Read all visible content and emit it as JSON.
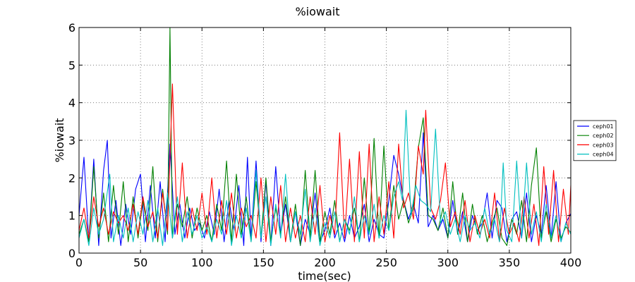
{
  "chart_data": {
    "type": "line",
    "title": "%iowait",
    "xlabel": "time(sec)",
    "ylabel": "%iowait",
    "xlim": [
      0,
      400
    ],
    "ylim": [
      0,
      6
    ],
    "xticks": [
      0,
      50,
      100,
      150,
      200,
      250,
      300,
      350,
      400
    ],
    "yticks": [
      0,
      1,
      2,
      3,
      4,
      5,
      6
    ],
    "grid": true,
    "legend_position": "right, outside plot, vertically centered",
    "series": [
      {
        "name": "ceph01",
        "color": "#0000ff",
        "x": [
          0,
          4,
          8,
          12,
          16,
          20,
          23,
          26,
          30,
          34,
          38,
          42,
          46,
          50,
          54,
          58,
          62,
          66,
          70,
          74,
          78,
          82,
          86,
          90,
          94,
          98,
          102,
          106,
          110,
          114,
          118,
          122,
          126,
          130,
          134,
          137,
          140,
          144,
          148,
          152,
          156,
          160,
          164,
          168,
          172,
          176,
          180,
          184,
          188,
          192,
          196,
          200,
          204,
          208,
          212,
          216,
          220,
          224,
          228,
          232,
          236,
          240,
          244,
          248,
          252,
          256,
          260,
          264,
          268,
          272,
          276,
          280,
          284,
          288,
          292,
          296,
          300,
          304,
          308,
          312,
          316,
          320,
          324,
          328,
          332,
          336,
          340,
          344,
          348,
          352,
          356,
          360,
          364,
          368,
          372,
          376,
          380,
          384,
          388,
          392,
          396,
          400
        ],
        "values": [
          1.0,
          2.55,
          0.3,
          2.5,
          0.2,
          2.2,
          3.0,
          0.4,
          1.4,
          0.2,
          1.3,
          0.5,
          1.7,
          2.1,
          0.3,
          1.8,
          0.4,
          1.9,
          0.3,
          2.9,
          0.5,
          1.3,
          0.4,
          1.2,
          0.6,
          0.8,
          0.4,
          1.1,
          0.5,
          1.7,
          0.3,
          1.4,
          0.6,
          1.8,
          0.2,
          2.55,
          0.4,
          2.45,
          0.3,
          1.9,
          0.2,
          2.3,
          0.5,
          1.3,
          0.3,
          1.1,
          0.2,
          0.9,
          0.5,
          1.6,
          0.3,
          0.6,
          1.2,
          0.4,
          0.8,
          0.3,
          1.0,
          0.4,
          0.7,
          1.3,
          0.3,
          0.9,
          0.5,
          0.4,
          1.4,
          2.6,
          2.1,
          1.4,
          0.9,
          1.3,
          0.8,
          3.2,
          0.7,
          1.0,
          0.6,
          0.9,
          0.4,
          1.4,
          0.5,
          1.1,
          0.3,
          1.0,
          0.6,
          0.8,
          1.6,
          0.4,
          1.4,
          1.2,
          0.3,
          0.9,
          1.1,
          0.4,
          1.6,
          0.3,
          1.0,
          0.5,
          1.8,
          0.4,
          1.9,
          0.3,
          0.8,
          1.05
        ]
      },
      {
        "name": "ceph02",
        "color": "#008000",
        "x": [
          0,
          4,
          8,
          12,
          16,
          20,
          24,
          28,
          32,
          36,
          40,
          44,
          48,
          52,
          56,
          60,
          64,
          68,
          72,
          74,
          76,
          80,
          84,
          88,
          92,
          96,
          100,
          104,
          108,
          112,
          116,
          120,
          124,
          128,
          132,
          136,
          140,
          144,
          148,
          152,
          156,
          160,
          164,
          168,
          172,
          176,
          180,
          184,
          188,
          192,
          196,
          200,
          204,
          208,
          212,
          216,
          220,
          224,
          228,
          232,
          236,
          240,
          244,
          248,
          252,
          256,
          260,
          264,
          268,
          272,
          276,
          280,
          284,
          288,
          292,
          296,
          300,
          304,
          308,
          312,
          316,
          320,
          324,
          328,
          332,
          336,
          340,
          344,
          348,
          352,
          356,
          360,
          364,
          368,
          372,
          376,
          380,
          384,
          388,
          392,
          396,
          400
        ],
        "values": [
          0.5,
          0.9,
          0.3,
          2.3,
          0.4,
          1.6,
          0.3,
          1.8,
          0.5,
          1.9,
          0.3,
          1.5,
          0.4,
          1.4,
          0.6,
          2.3,
          0.3,
          1.7,
          0.5,
          6.0,
          0.4,
          1.3,
          0.7,
          1.5,
          0.4,
          1.2,
          0.6,
          1.0,
          0.3,
          1.3,
          0.6,
          2.45,
          0.3,
          2.1,
          0.5,
          1.5,
          0.3,
          1.9,
          0.4,
          2.0,
          0.3,
          1.2,
          0.5,
          1.5,
          0.3,
          1.3,
          0.2,
          2.2,
          0.4,
          2.2,
          0.3,
          1.1,
          0.5,
          1.4,
          0.3,
          0.9,
          0.6,
          1.2,
          0.3,
          2.0,
          0.5,
          3.05,
          0.4,
          2.85,
          0.6,
          1.8,
          0.9,
          1.4,
          0.8,
          1.2,
          2.8,
          3.6,
          1.0,
          0.9,
          0.6,
          1.2,
          0.4,
          1.9,
          0.5,
          1.6,
          0.3,
          1.3,
          0.5,
          1.0,
          0.3,
          0.8,
          1.2,
          0.4,
          0.2,
          0.9,
          0.5,
          1.4,
          0.3,
          1.8,
          2.8,
          0.4,
          1.1,
          0.3,
          0.9,
          0.4,
          0.7,
          0.55
        ]
      },
      {
        "name": "ceph03",
        "color": "#ff0000",
        "x": [
          0,
          4,
          8,
          12,
          16,
          20,
          24,
          28,
          32,
          36,
          40,
          44,
          48,
          52,
          56,
          60,
          64,
          68,
          72,
          76,
          80,
          84,
          88,
          92,
          96,
          100,
          104,
          108,
          112,
          116,
          120,
          124,
          128,
          132,
          136,
          140,
          144,
          148,
          152,
          156,
          160,
          164,
          168,
          172,
          176,
          180,
          184,
          188,
          192,
          196,
          200,
          204,
          208,
          212,
          216,
          220,
          224,
          228,
          232,
          236,
          240,
          244,
          248,
          252,
          256,
          260,
          264,
          268,
          272,
          276,
          280,
          282,
          286,
          290,
          294,
          298,
          302,
          306,
          310,
          314,
          318,
          322,
          326,
          330,
          334,
          338,
          342,
          346,
          350,
          354,
          358,
          362,
          366,
          370,
          374,
          378,
          382,
          386,
          390,
          394,
          398,
          400
        ],
        "values": [
          0.6,
          1.2,
          0.4,
          1.5,
          0.7,
          1.2,
          0.5,
          1.1,
          0.8,
          1.0,
          0.6,
          1.3,
          0.5,
          1.5,
          0.7,
          1.1,
          0.4,
          1.6,
          0.6,
          4.5,
          0.5,
          2.4,
          0.4,
          1.2,
          0.6,
          1.6,
          0.5,
          2.0,
          0.4,
          1.4,
          0.5,
          1.6,
          0.4,
          1.2,
          0.7,
          1.0,
          0.4,
          2.0,
          0.3,
          1.5,
          0.5,
          1.8,
          0.3,
          1.2,
          0.4,
          1.0,
          0.3,
          1.5,
          0.5,
          1.8,
          0.3,
          1.0,
          0.5,
          3.2,
          0.4,
          2.5,
          0.3,
          2.7,
          0.4,
          2.9,
          0.3,
          1.5,
          0.5,
          1.9,
          0.4,
          2.9,
          1.2,
          1.6,
          0.9,
          2.85,
          2.1,
          3.8,
          1.2,
          0.9,
          1.4,
          2.4,
          0.7,
          1.1,
          0.5,
          1.4,
          0.3,
          1.0,
          0.5,
          0.9,
          0.4,
          1.6,
          0.3,
          1.2,
          0.5,
          0.8,
          0.3,
          1.5,
          0.4,
          1.3,
          0.2,
          2.3,
          0.5,
          2.2,
          0.3,
          1.7,
          0.5,
          1.8
        ]
      },
      {
        "name": "ceph04",
        "color": "#00bfbf",
        "x": [
          0,
          4,
          8,
          12,
          16,
          20,
          25,
          28,
          32,
          36,
          40,
          44,
          48,
          52,
          56,
          60,
          64,
          68,
          72,
          76,
          80,
          84,
          88,
          92,
          96,
          100,
          104,
          108,
          112,
          116,
          120,
          124,
          128,
          132,
          136,
          140,
          144,
          148,
          152,
          156,
          160,
          164,
          168,
          172,
          176,
          180,
          184,
          188,
          192,
          196,
          200,
          204,
          208,
          212,
          216,
          220,
          224,
          228,
          232,
          236,
          240,
          244,
          248,
          252,
          256,
          260,
          263,
          266,
          270,
          274,
          278,
          282,
          286,
          290,
          294,
          298,
          302,
          306,
          310,
          314,
          318,
          322,
          326,
          330,
          334,
          338,
          342,
          345,
          348,
          352,
          356,
          360,
          364,
          368,
          372,
          376,
          380,
          384,
          388,
          392,
          396,
          400
        ],
        "values": [
          0.4,
          0.9,
          0.2,
          1.2,
          0.5,
          0.9,
          2.1,
          0.3,
          1.0,
          0.4,
          1.2,
          0.3,
          1.1,
          0.5,
          1.4,
          0.3,
          1.2,
          0.2,
          1.6,
          0.4,
          1.5,
          0.3,
          1.1,
          0.5,
          1.0,
          0.4,
          0.7,
          0.3,
          0.9,
          0.5,
          1.4,
          0.2,
          1.0,
          0.4,
          1.2,
          0.3,
          2.2,
          0.4,
          1.5,
          0.2,
          1.3,
          0.4,
          2.1,
          0.3,
          1.1,
          0.5,
          1.7,
          0.3,
          1.2,
          0.2,
          0.8,
          0.4,
          1.1,
          0.3,
          0.9,
          0.5,
          1.5,
          0.3,
          1.0,
          0.5,
          1.3,
          0.4,
          1.0,
          0.6,
          1.5,
          1.9,
          1.4,
          3.8,
          1.0,
          1.8,
          1.4,
          1.3,
          1.1,
          3.3,
          0.8,
          1.1,
          0.5,
          0.9,
          0.3,
          1.0,
          0.6,
          0.8,
          0.4,
          1.2,
          0.5,
          0.9,
          0.3,
          2.4,
          0.6,
          0.3,
          2.45,
          0.4,
          2.4,
          0.5,
          1.1,
          0.3,
          1.3,
          0.4,
          1.0,
          0.3,
          0.8,
          0.5
        ]
      }
    ]
  }
}
